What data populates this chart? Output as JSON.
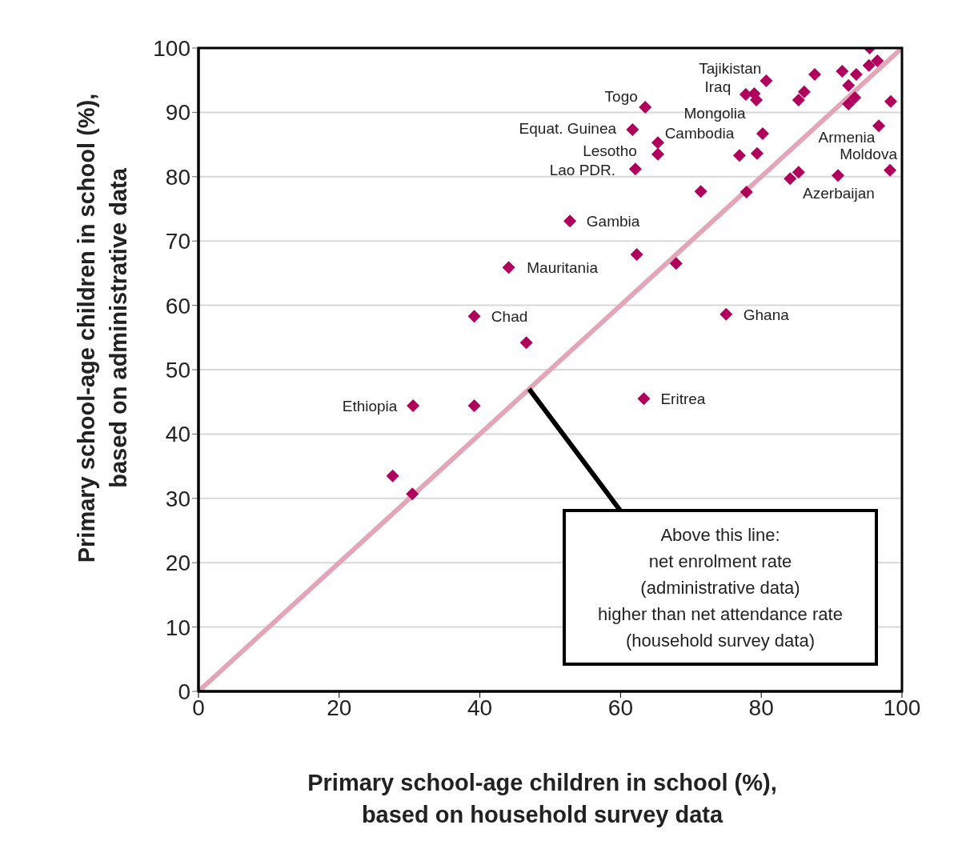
{
  "chart_data": {
    "type": "scatter",
    "xlabel": "Primary school-age children in school (%),\nbased on household survey data",
    "ylabel": "Primary school-age children in school (%),\nbased on administrative data",
    "xlim": [
      0,
      100
    ],
    "ylim": [
      0,
      100
    ],
    "xticks": [
      0,
      20,
      40,
      60,
      80,
      100
    ],
    "yticks": [
      0,
      10,
      20,
      30,
      40,
      50,
      60,
      70,
      80,
      90,
      100
    ],
    "grid": "y",
    "marker": "diamond",
    "series": [
      {
        "type": "line",
        "marker": "none",
        "color": "#e3a6b8",
        "x": [
          0,
          100
        ],
        "values": [
          0,
          100
        ]
      },
      {
        "color": "#b0005b",
        "x": [
          95.4,
          91.5,
          87.6,
          93.5,
          95.3,
          96.5,
          80.7,
          77.8,
          79.0,
          79.3,
          86.1,
          85.3,
          92.4,
          92.4,
          93.3,
          98.4,
          96.7,
          98.3,
          90.9,
          85.3,
          84.1,
          63.5,
          61.7,
          65.3,
          65.3,
          62.1,
          80.2,
          76.9,
          79.4,
          71.4,
          77.9,
          52.8,
          44.1,
          62.3,
          67.9,
          39.2,
          46.6,
          75.0,
          63.3,
          30.5,
          39.2,
          27.6,
          30.4
        ],
        "values": [
          100,
          96.4,
          95.9,
          95.9,
          97.3,
          98.0,
          94.9,
          92.8,
          92.9,
          91.9,
          93.2,
          91.9,
          94.2,
          91.3,
          92.3,
          91.7,
          87.9,
          81.0,
          80.2,
          80.7,
          79.7,
          90.8,
          87.3,
          85.3,
          83.5,
          81.2,
          86.7,
          83.3,
          83.6,
          77.7,
          77.6,
          73.1,
          65.9,
          67.9,
          66.5,
          58.3,
          54.2,
          58.6,
          45.5,
          44.4,
          44.4,
          33.5,
          30.7
        ]
      }
    ],
    "annotations": [
      {
        "text": "Tajikistan",
        "x": 80.7,
        "y": 94.9
      },
      {
        "text": "Iraq",
        "x": 77.8,
        "y": 92.8
      },
      {
        "text": "Mongolia",
        "x": 79.3,
        "y": 91.9
      },
      {
        "text": "Cambodia",
        "x": 80.2,
        "y": 86.7
      },
      {
        "text": "Togo",
        "x": 63.5,
        "y": 90.8
      },
      {
        "text": "Equat. Guinea",
        "x": 61.7,
        "y": 87.3
      },
      {
        "text": "Lesotho",
        "x": 65.3,
        "y": 85.3
      },
      {
        "text": "Lao PDR.",
        "x": 62.1,
        "y": 81.2
      },
      {
        "text": "Gambia",
        "x": 52.8,
        "y": 73.1
      },
      {
        "text": "Mauritania",
        "x": 44.1,
        "y": 65.9
      },
      {
        "text": "Chad",
        "x": 39.2,
        "y": 58.3
      },
      {
        "text": "Ghana",
        "x": 75.0,
        "y": 58.6
      },
      {
        "text": "Eritrea",
        "x": 63.3,
        "y": 45.5
      },
      {
        "text": "Ethiopia",
        "x": 30.5,
        "y": 44.4
      },
      {
        "text": "Armenia",
        "x": 96.7,
        "y": 87.9
      },
      {
        "text": "Moldova",
        "x": 98.3,
        "y": 81.0
      },
      {
        "text": "Azerbaijan",
        "x": 90.9,
        "y": 80.2
      },
      {
        "text": "Above this line:\nnet enrolment rate\n(administrative data)\nhigher than net attendance rate\n(household survey data)",
        "x": 47,
        "y": 47
      }
    ]
  }
}
